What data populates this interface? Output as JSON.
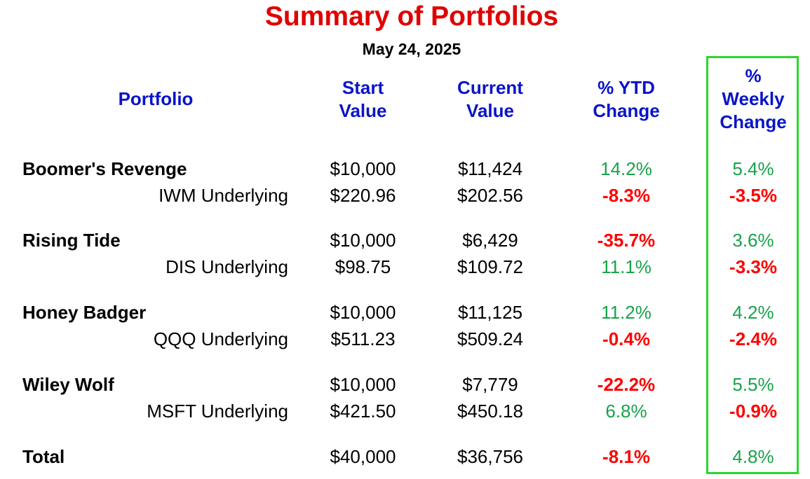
{
  "title": "Summary of Portfolios",
  "date": "May 24, 2025",
  "headers": {
    "portfolio": "Portfolio",
    "start": [
      "Start",
      "Value"
    ],
    "current": [
      "Current",
      "Value"
    ],
    "ytd": [
      "% YTD",
      "Change"
    ],
    "weekly": [
      "%",
      "Weekly",
      "Change"
    ]
  },
  "rows": [
    {
      "kind": "portfolio",
      "name": "Boomer's Revenge",
      "start": "$10,000",
      "current": "$11,424",
      "ytd": "14.2%",
      "ytd_dir": "pos",
      "weekly": "5.4%",
      "weekly_dir": "pos"
    },
    {
      "kind": "underlying",
      "name": "IWM Underlying",
      "start": "$220.96",
      "current": "$202.56",
      "ytd": "-8.3%",
      "ytd_dir": "neg",
      "weekly": "-3.5%",
      "weekly_dir": "neg"
    },
    {
      "kind": "portfolio",
      "name": "Rising Tide",
      "start": "$10,000",
      "current": "$6,429",
      "ytd": "-35.7%",
      "ytd_dir": "neg",
      "weekly": "3.6%",
      "weekly_dir": "pos"
    },
    {
      "kind": "underlying",
      "name": "DIS Underlying",
      "start": "$98.75",
      "current": "$109.72",
      "ytd": "11.1%",
      "ytd_dir": "pos",
      "weekly": "-3.3%",
      "weekly_dir": "neg"
    },
    {
      "kind": "portfolio",
      "name": "Honey Badger",
      "start": "$10,000",
      "current": "$11,125",
      "ytd": "11.2%",
      "ytd_dir": "pos",
      "weekly": "4.2%",
      "weekly_dir": "pos"
    },
    {
      "kind": "underlying",
      "name": "QQQ Underlying",
      "start": "$511.23",
      "current": "$509.24",
      "ytd": "-0.4%",
      "ytd_dir": "neg",
      "weekly": "-2.4%",
      "weekly_dir": "neg"
    },
    {
      "kind": "portfolio",
      "name": "Wiley Wolf",
      "start": "$10,000",
      "current": "$7,779",
      "ytd": "-22.2%",
      "ytd_dir": "neg",
      "weekly": "5.5%",
      "weekly_dir": "pos"
    },
    {
      "kind": "underlying",
      "name": "MSFT Underlying",
      "start": "$421.50",
      "current": "$450.18",
      "ytd": "6.8%",
      "ytd_dir": "pos",
      "weekly": "-0.9%",
      "weekly_dir": "neg"
    },
    {
      "kind": "portfolio",
      "name": "Total",
      "start": "$40,000",
      "current": "$36,756",
      "ytd": "-8.1%",
      "ytd_dir": "neg",
      "weekly": "4.8%",
      "weekly_dir": "pos"
    }
  ],
  "colors": {
    "title": "#e00000",
    "header": "#0a14c8",
    "positive": "#17a34a",
    "negative": "#ff0000",
    "highlight_box": "#2bd62b"
  }
}
